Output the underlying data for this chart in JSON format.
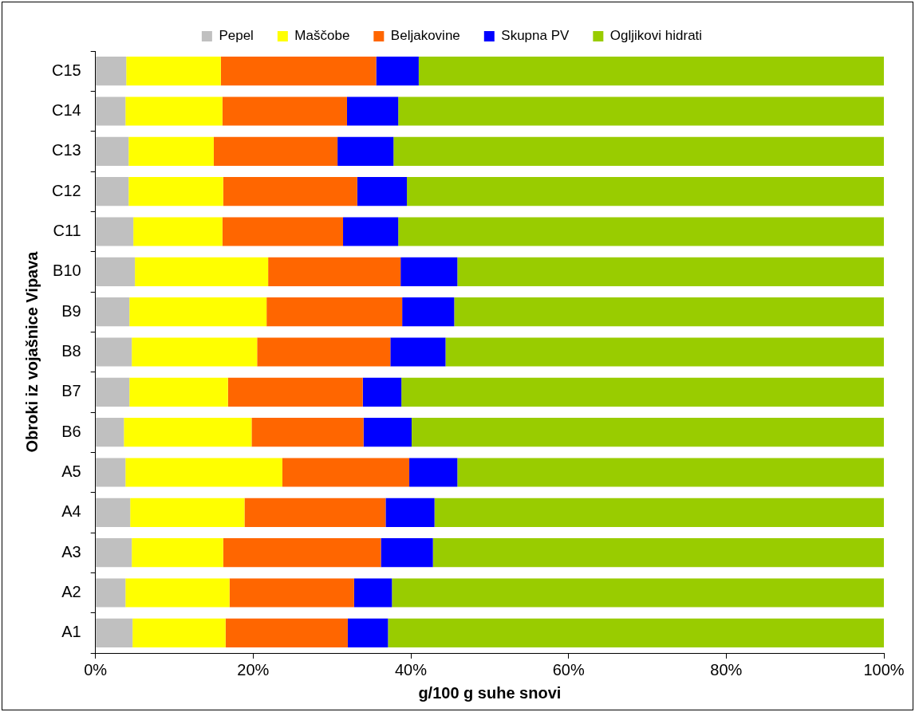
{
  "chart_data": {
    "type": "bar",
    "orientation": "horizontal",
    "stacked": true,
    "xlabel": "g/100 g suhe snovi",
    "ylabel": "Obroki iz vojašnice Vipava",
    "categories": [
      "C15",
      "C14",
      "C13",
      "C12",
      "C11",
      "B10",
      "B9",
      "B8",
      "B7",
      "B6",
      "A5",
      "A4",
      "A3",
      "A2",
      "A1"
    ],
    "xlim": [
      0,
      100
    ],
    "xticks": [
      {
        "value": 0,
        "label": "0%"
      },
      {
        "value": 20,
        "label": "20%"
      },
      {
        "value": 40,
        "label": "40%"
      },
      {
        "value": 60,
        "label": "60%"
      },
      {
        "value": 80,
        "label": "80%"
      },
      {
        "value": 100,
        "label": "100%"
      }
    ],
    "grid": false,
    "legend": "top",
    "series": [
      {
        "name": "Pepel",
        "color": "#c0c0c0",
        "values": [
          3.9,
          3.8,
          4.2,
          4.2,
          4.8,
          5.0,
          4.3,
          4.6,
          4.3,
          3.6,
          3.8,
          4.4,
          4.6,
          3.8,
          4.7
        ]
      },
      {
        "name": "Maščobe",
        "color": "#ffff00",
        "values": [
          12.0,
          12.3,
          10.8,
          12.0,
          11.3,
          16.9,
          17.4,
          15.9,
          12.5,
          16.2,
          19.9,
          14.5,
          11.6,
          13.2,
          11.8
        ]
      },
      {
        "name": "Beljakovine",
        "color": "#ff6600",
        "values": [
          19.7,
          15.8,
          15.7,
          17.0,
          15.3,
          16.8,
          17.2,
          16.9,
          17.1,
          14.2,
          16.1,
          17.9,
          20.0,
          15.8,
          15.5
        ]
      },
      {
        "name": "Skupna PV",
        "color": "#0000ff",
        "values": [
          5.4,
          6.5,
          7.1,
          6.3,
          7.0,
          7.2,
          6.6,
          7.0,
          4.9,
          6.1,
          6.1,
          6.2,
          6.6,
          4.8,
          5.1
        ]
      },
      {
        "name": "Ogljikovi hidrati",
        "color": "#99cc00",
        "values": [
          59.0,
          61.6,
          62.2,
          60.5,
          61.6,
          54.1,
          54.5,
          55.6,
          61.2,
          59.9,
          54.1,
          57.0,
          57.2,
          62.4,
          62.9
        ]
      }
    ]
  }
}
